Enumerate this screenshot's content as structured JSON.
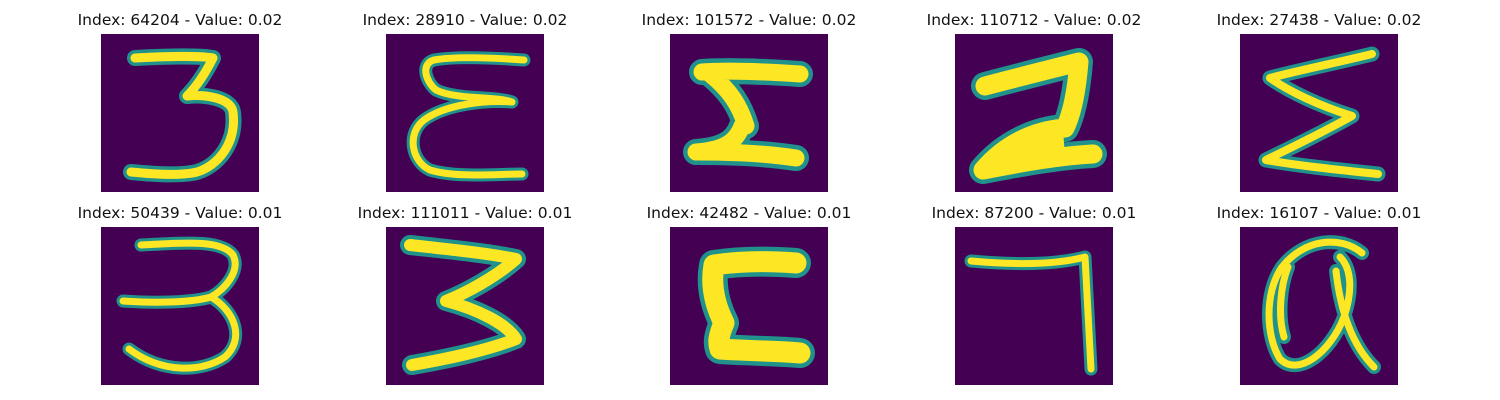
{
  "colors": {
    "background": "#440154",
    "mid": "#21918c",
    "stroke": "#fde725"
  },
  "panels": [
    {
      "title": "Index: 64204 - Value: 0.02",
      "glyph": "glyph-3a"
    },
    {
      "title": "Index: 28910 - Value: 0.02",
      "glyph": "glyph-epsilon"
    },
    {
      "title": "Index: 101572 - Value: 0.02",
      "glyph": "glyph-block-z"
    },
    {
      "title": "Index: 110712 - Value: 0.02",
      "glyph": "glyph-z-bold"
    },
    {
      "title": "Index: 27438 - Value: 0.02",
      "glyph": "glyph-sigma"
    },
    {
      "title": "Index: 50439 - Value: 0.01",
      "glyph": "glyph-3b"
    },
    {
      "title": "Index: 111011 - Value: 0.01",
      "glyph": "glyph-3c"
    },
    {
      "title": "Index: 42482 - Value: 0.01",
      "glyph": "glyph-c"
    },
    {
      "title": "Index: 87200 - Value: 0.01",
      "glyph": "glyph-7"
    },
    {
      "title": "Index: 16107 - Value: 0.01",
      "glyph": "glyph-alpha"
    }
  ]
}
